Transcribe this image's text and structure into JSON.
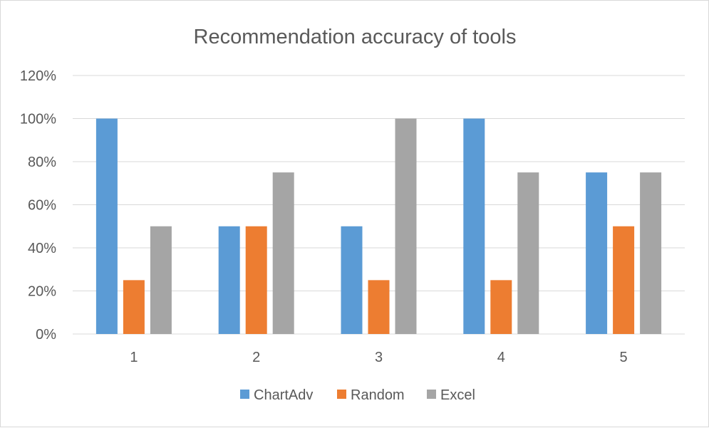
{
  "chart_data": {
    "type": "bar",
    "title": "Recommendation accuracy of tools",
    "xlabel": "",
    "ylabel": "",
    "categories": [
      "1",
      "2",
      "3",
      "4",
      "5"
    ],
    "series": [
      {
        "name": "ChartAdv",
        "color": "#5B9BD5",
        "values": [
          100,
          50,
          50,
          100,
          75
        ]
      },
      {
        "name": "Random",
        "color": "#ED7D31",
        "values": [
          25,
          50,
          25,
          25,
          50
        ]
      },
      {
        "name": "Excel",
        "color": "#A5A5A5",
        "values": [
          50,
          75,
          100,
          75,
          75
        ]
      }
    ],
    "ylim": [
      0,
      120
    ],
    "yticks": [
      0,
      20,
      40,
      60,
      80,
      100,
      120
    ],
    "ytick_labels": [
      "0%",
      "20%",
      "40%",
      "60%",
      "80%",
      "100%",
      "120%"
    ],
    "grid": true,
    "legend_position": "bottom"
  }
}
